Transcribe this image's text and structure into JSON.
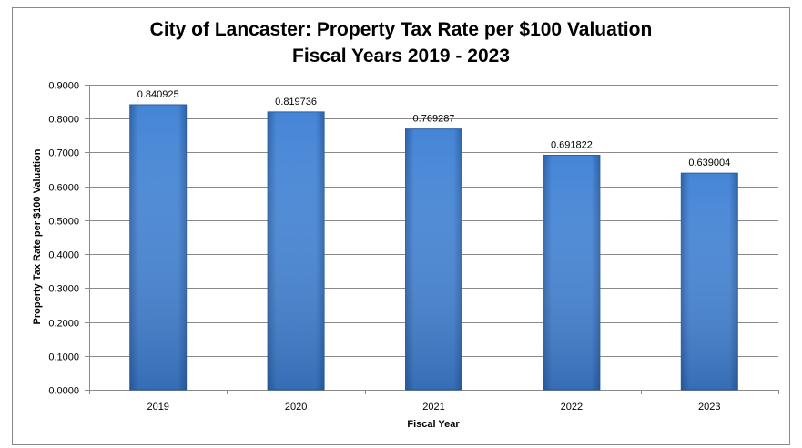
{
  "chart_data": {
    "type": "bar",
    "title": "City of Lancaster: Property Tax Rate per $100 Valuation",
    "subtitle": "Fiscal Years 2019 - 2023",
    "xlabel": "Fiscal Year",
    "ylabel": "Property Tax Rate per $100 Valuation",
    "categories": [
      "2019",
      "2020",
      "2021",
      "2022",
      "2023"
    ],
    "values": [
      0.840925,
      0.819736,
      0.769287,
      0.691822,
      0.639004
    ],
    "data_labels": [
      "0.840925",
      "0.819736",
      "0.769287",
      "0.691822",
      "0.639004"
    ],
    "ylim": [
      0,
      0.9
    ],
    "yticks": [
      "0.0000",
      "0.1000",
      "0.2000",
      "0.3000",
      "0.4000",
      "0.5000",
      "0.6000",
      "0.7000",
      "0.8000",
      "0.9000"
    ],
    "grid": true,
    "legend": "none",
    "bar_color": "#3f7fd0"
  }
}
